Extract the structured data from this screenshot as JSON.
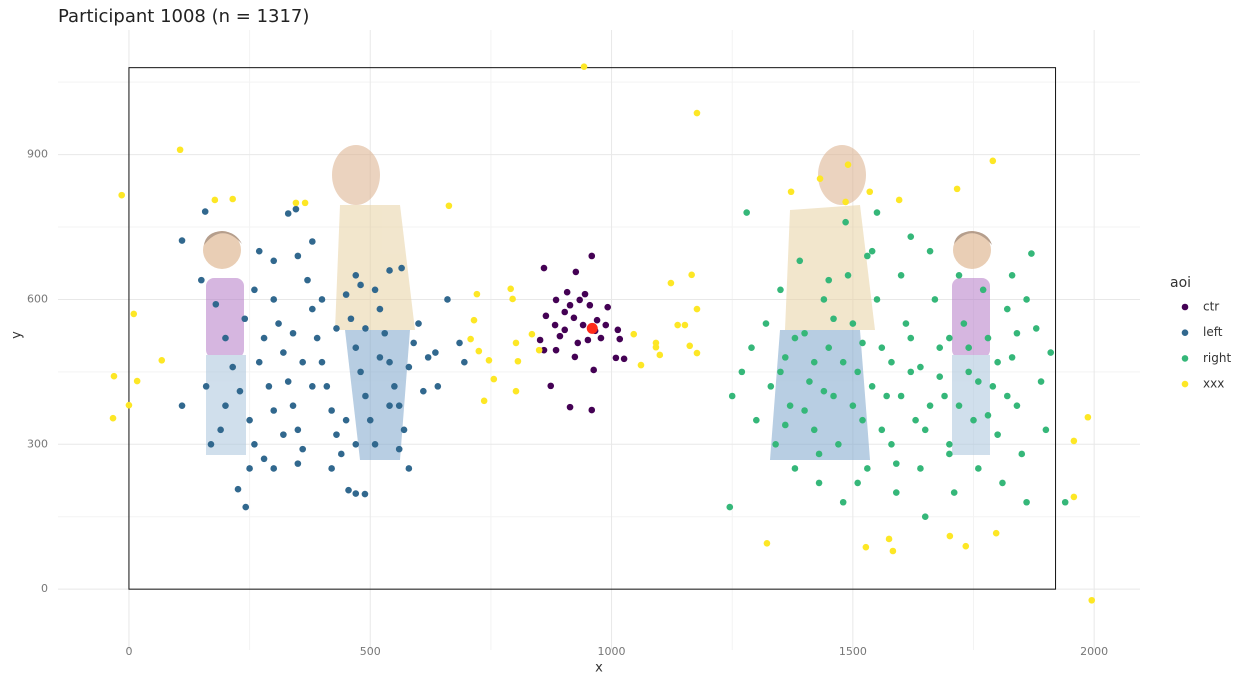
{
  "chart_data": {
    "type": "scatter",
    "title": "Participant 1008 (n = 1317)",
    "x_label": "x",
    "y_label": "y",
    "legend_title": "aoi",
    "xlim": [
      -147,
      2095
    ],
    "ylim": [
      -126,
      1158
    ],
    "xticks": [
      0,
      500,
      1000,
      1500,
      2000
    ],
    "yticks": [
      0,
      300,
      600,
      900
    ],
    "xminor": [
      250,
      750,
      1250,
      1750
    ],
    "yminor": [
      150,
      450,
      750,
      1050
    ],
    "grid": true,
    "legend": "right",
    "frame": {
      "x": [
        0,
        1920
      ],
      "y": [
        0,
        1080
      ]
    },
    "highlight": {
      "x": 960,
      "y": 540,
      "color": "#ff2a1a"
    },
    "series": [
      {
        "name": "ctr",
        "color": "#440154",
        "x": [
          860,
          926,
          959,
          945,
          908,
          885,
          864,
          852,
          860,
          874,
          914,
          959,
          963,
          992,
          1013,
          1009,
          1026,
          1017,
          922,
          941,
          903,
          970,
          951,
          893,
          930,
          978,
          955,
          914,
          883,
          988,
          934,
          903,
          966,
          924,
          885
        ],
        "values": [
          665,
          657,
          690,
          611,
          615,
          599,
          566,
          516,
          495,
          421,
          377,
          371,
          454,
          584,
          537,
          479,
          477,
          518,
          562,
          547,
          537,
          557,
          516,
          524,
          510,
          520,
          588,
          588,
          547,
          547,
          599,
          574,
          535,
          481,
          495
        ]
      },
      {
        "name": "left",
        "color": "#31688e",
        "x": [
          110,
          158,
          330,
          346,
          380,
          226,
          242,
          455,
          489,
          470,
          480,
          540,
          565,
          635,
          685,
          695,
          110,
          150,
          180,
          200,
          215,
          230,
          250,
          260,
          280,
          300,
          310,
          320,
          330,
          340,
          350,
          360,
          370,
          380,
          390,
          400,
          410,
          420,
          430,
          440,
          450,
          460,
          470,
          480,
          490,
          500,
          510,
          520,
          530,
          540,
          550,
          560,
          570,
          580,
          590,
          600,
          610,
          620,
          640,
          660,
          270,
          290,
          300,
          320,
          280,
          240,
          260,
          200,
          190,
          170,
          160,
          250,
          300,
          350,
          420,
          450,
          470,
          380,
          360,
          340,
          400,
          430,
          470,
          510,
          490,
          520,
          540,
          560,
          580,
          350,
          300,
          270
        ],
        "values": [
          722,
          782,
          778,
          787,
          720,
          207,
          170,
          205,
          197,
          198,
          630,
          660,
          665,
          490,
          510,
          470,
          380,
          640,
          590,
          520,
          460,
          410,
          350,
          300,
          270,
          600,
          550,
          490,
          430,
          380,
          330,
          290,
          640,
          580,
          520,
          470,
          420,
          370,
          320,
          280,
          610,
          560,
          500,
          450,
          400,
          350,
          300,
          580,
          530,
          470,
          420,
          380,
          330,
          460,
          510,
          550,
          410,
          480,
          420,
          600,
          470,
          420,
          370,
          320,
          520,
          560,
          620,
          380,
          330,
          300,
          420,
          250,
          250,
          260,
          250,
          350,
          300,
          420,
          470,
          530,
          600,
          540,
          650,
          620,
          540,
          480,
          380,
          290,
          250,
          690,
          680,
          700
        ]
      },
      {
        "name": "right",
        "color": "#35b779",
        "x": [
          1280,
          1245,
          1940,
          1910,
          1870,
          1550,
          1485,
          1250,
          1270,
          1290,
          1300,
          1320,
          1330,
          1340,
          1350,
          1360,
          1370,
          1380,
          1390,
          1400,
          1410,
          1420,
          1430,
          1440,
          1450,
          1460,
          1470,
          1480,
          1490,
          1500,
          1510,
          1520,
          1530,
          1540,
          1550,
          1560,
          1570,
          1580,
          1590,
          1600,
          1610,
          1620,
          1630,
          1640,
          1650,
          1660,
          1670,
          1680,
          1690,
          1700,
          1710,
          1720,
          1730,
          1740,
          1750,
          1760,
          1770,
          1780,
          1790,
          1800,
          1810,
          1820,
          1830,
          1840,
          1850,
          1860,
          1880,
          1890,
          1900,
          1860,
          1830,
          1350,
          1380,
          1400,
          1420,
          1440,
          1460,
          1480,
          1500,
          1520,
          1540,
          1560,
          1580,
          1600,
          1620,
          1640,
          1660,
          1680,
          1700,
          1720,
          1740,
          1760,
          1780,
          1800,
          1820,
          1840,
          1450,
          1530,
          1620,
          1700,
          1650,
          1590,
          1510,
          1430,
          1360
        ],
        "values": [
          780,
          170,
          180,
          490,
          695,
          780,
          760,
          400,
          450,
          500,
          350,
          550,
          420,
          300,
          620,
          480,
          380,
          250,
          680,
          530,
          430,
          330,
          220,
          600,
          500,
          400,
          300,
          180,
          650,
          550,
          450,
          350,
          250,
          700,
          600,
          500,
          400,
          300,
          200,
          650,
          550,
          450,
          350,
          250,
          150,
          700,
          600,
          500,
          400,
          300,
          200,
          650,
          550,
          450,
          350,
          250,
          620,
          520,
          420,
          320,
          220,
          580,
          480,
          380,
          280,
          180,
          540,
          430,
          330,
          600,
          650,
          450,
          520,
          370,
          470,
          410,
          560,
          470,
          380,
          510,
          420,
          330,
          470,
          400,
          520,
          460,
          380,
          440,
          520,
          380,
          500,
          430,
          360,
          470,
          400,
          530,
          640,
          690,
          730,
          280,
          330,
          260,
          220,
          280,
          340
        ]
      },
      {
        "name": "xxx",
        "color": "#fde725",
        "x": [
          943,
          1177,
          106,
          -15,
          178,
          215,
          346,
          365,
          663,
          10,
          68,
          -31,
          17,
          0,
          -33,
          715,
          721,
          791,
          795,
          708,
          725,
          746,
          736,
          756,
          802,
          802,
          806,
          835,
          850,
          1046,
          1061,
          1092,
          1092,
          1100,
          1123,
          1137,
          1152,
          1166,
          1162,
          1177,
          1177,
          1372,
          1432,
          1490,
          1485,
          1535,
          1596,
          1716,
          1790,
          1322,
          1527,
          1575,
          1583,
          1701,
          1734,
          1797,
          1987,
          1958,
          1958,
          1995
        ],
        "values": [
          1082,
          986,
          910,
          816,
          806,
          808,
          800,
          800,
          794,
          570,
          474,
          441,
          431,
          381,
          354,
          557,
          611,
          622,
          601,
          518,
          493,
          474,
          390,
          435,
          410,
          510,
          472,
          528,
          495,
          528,
          464,
          510,
          501,
          485,
          634,
          547,
          547,
          651,
          504,
          489,
          580,
          823,
          850,
          879,
          802,
          823,
          806,
          829,
          887,
          95,
          87,
          104,
          79,
          110,
          89,
          116,
          356,
          307,
          191,
          -23
        ]
      }
    ]
  }
}
